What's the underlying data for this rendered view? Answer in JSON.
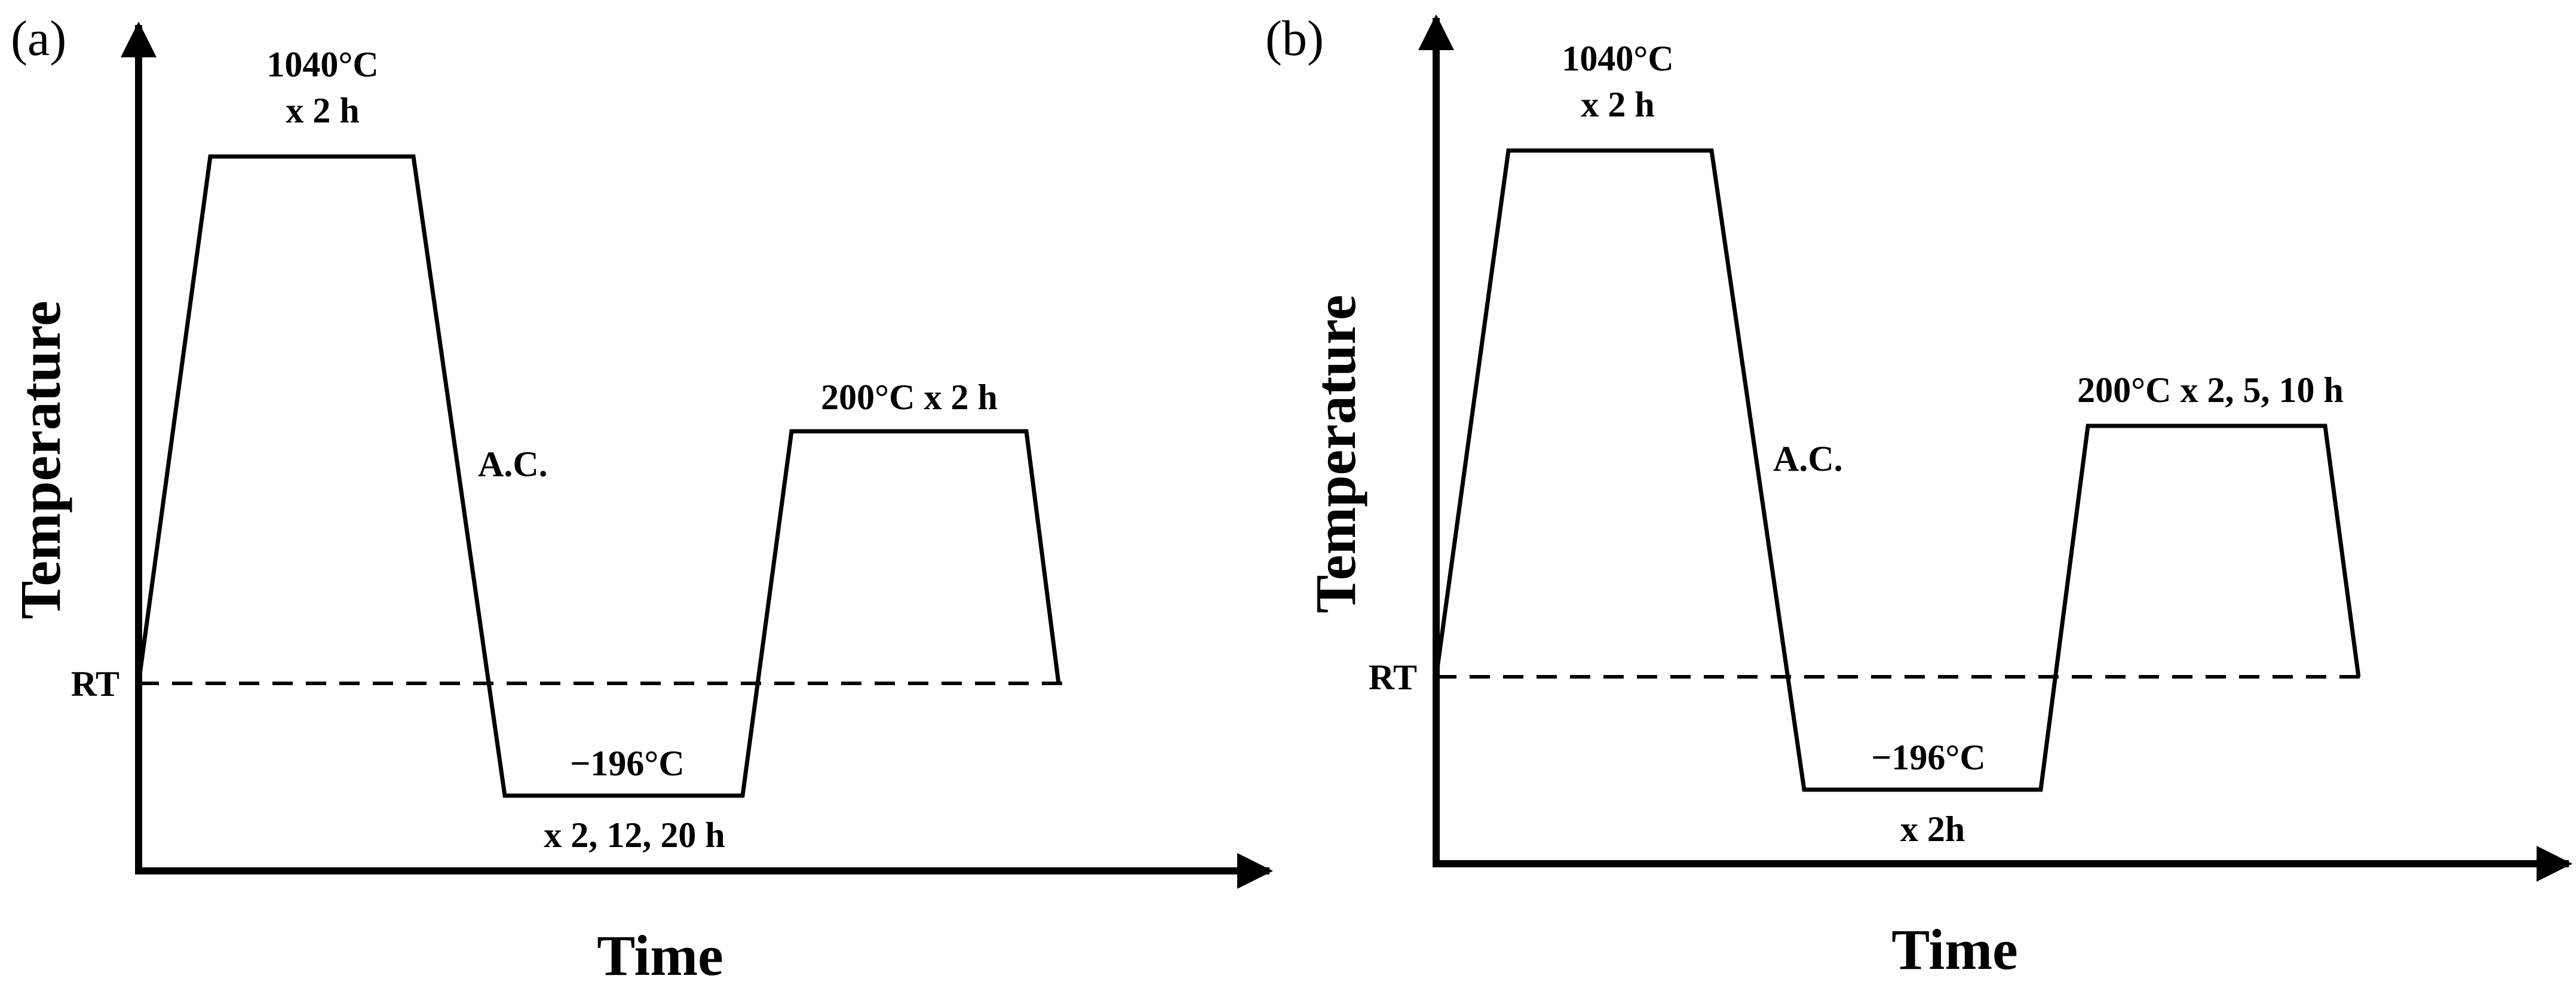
{
  "panels": [
    {
      "label": "(a)",
      "y_axis_title": "Temperature",
      "x_axis_title": "Time",
      "rt_label": "RT",
      "austenitize": {
        "line1": "1040°C",
        "line2": "x 2 h"
      },
      "cooling_label": "A.C.",
      "cryo": {
        "temp": "−196°C",
        "time": "x 2, 12, 20 h"
      },
      "temper": {
        "text": "200°C x 2 h"
      }
    },
    {
      "label": "(b)",
      "y_axis_title": "Temperature",
      "x_axis_title": "Time",
      "rt_label": "RT",
      "austenitize": {
        "line1": "1040°C",
        "line2": "x 2 h"
      },
      "cooling_label": "A.C.",
      "cryo": {
        "temp": "−196°C",
        "time": "x 2h"
      },
      "temper": {
        "text": "200°C x 2, 5, 10 h"
      }
    }
  ]
}
